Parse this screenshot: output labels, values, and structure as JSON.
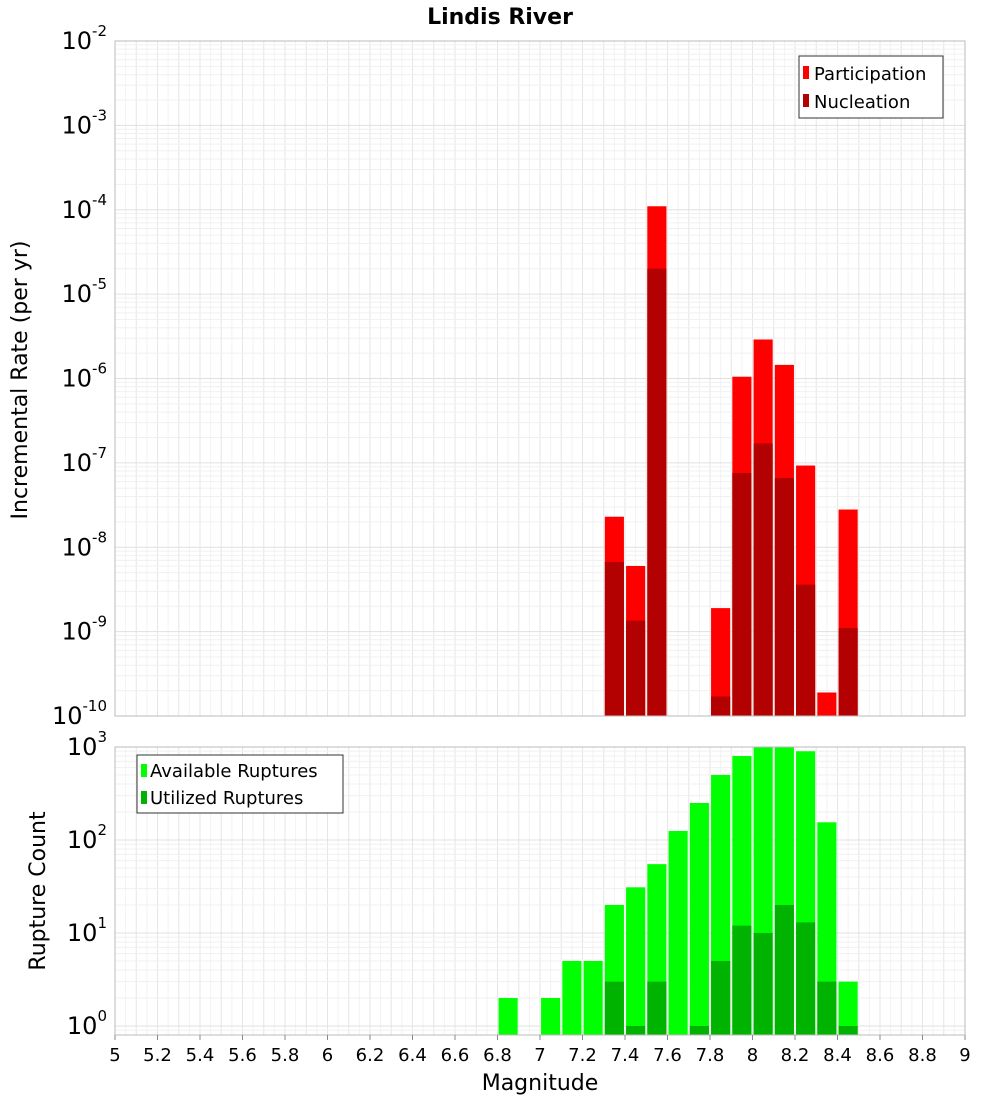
{
  "chart_data": [
    {
      "type": "bar",
      "title": "Lindis River",
      "xlabel": "",
      "ylabel": "Incremental Rate (per yr)",
      "xlim": [
        5,
        9
      ],
      "ylim": [
        1e-10,
        0.01
      ],
      "yscale": "log",
      "grid": true,
      "legend_position": "top-right",
      "yticks": [
        {
          "base": "10",
          "exp": "-10",
          "value": 1e-10
        },
        {
          "base": "10",
          "exp": "-9",
          "value": 1e-09
        },
        {
          "base": "10",
          "exp": "-8",
          "value": 1e-08
        },
        {
          "base": "10",
          "exp": "-7",
          "value": 1e-07
        },
        {
          "base": "10",
          "exp": "-6",
          "value": 1e-06
        },
        {
          "base": "10",
          "exp": "-5",
          "value": 1e-05
        },
        {
          "base": "10",
          "exp": "-4",
          "value": 0.0001
        },
        {
          "base": "10",
          "exp": "-3",
          "value": 0.001
        },
        {
          "base": "10",
          "exp": "-2",
          "value": 0.01
        }
      ],
      "series": [
        {
          "name": "Participation",
          "color": "#ff0000",
          "points": [
            {
              "x": 7.35,
              "y": 2.3e-08
            },
            {
              "x": 7.45,
              "y": 6e-09
            },
            {
              "x": 7.55,
              "y": 0.00011
            },
            {
              "x": 7.85,
              "y": 1.9e-09
            },
            {
              "x": 7.95,
              "y": 1.05e-06
            },
            {
              "x": 8.05,
              "y": 2.9e-06
            },
            {
              "x": 8.15,
              "y": 1.45e-06
            },
            {
              "x": 8.25,
              "y": 9.3e-08
            },
            {
              "x": 8.35,
              "y": 1.9e-10
            },
            {
              "x": 8.45,
              "y": 2.8e-08
            }
          ]
        },
        {
          "name": "Nucleation",
          "color": "#b30000",
          "points": [
            {
              "x": 7.35,
              "y": 6.7e-09
            },
            {
              "x": 7.45,
              "y": 1.35e-09
            },
            {
              "x": 7.55,
              "y": 2e-05
            },
            {
              "x": 7.85,
              "y": 1.7e-10
            },
            {
              "x": 7.95,
              "y": 7.6e-08
            },
            {
              "x": 8.05,
              "y": 1.7e-07
            },
            {
              "x": 8.15,
              "y": 6.6e-08
            },
            {
              "x": 8.25,
              "y": 3.6e-09
            },
            {
              "x": 8.45,
              "y": 1.1e-09
            }
          ]
        }
      ]
    },
    {
      "type": "bar",
      "title": "",
      "xlabel": "Magnitude",
      "ylabel": "Rupture Count",
      "xlim": [
        5,
        9
      ],
      "ylim": [
        0.8,
        1000
      ],
      "yscale": "log",
      "grid": true,
      "legend_position": "top-left",
      "xticks": [
        "5",
        "5.2",
        "5.4",
        "5.6",
        "5.8",
        "6",
        "6.2",
        "6.4",
        "6.6",
        "6.8",
        "7",
        "7.2",
        "7.4",
        "7.6",
        "7.8",
        "8",
        "8.2",
        "8.4",
        "8.6",
        "8.8",
        "9"
      ],
      "yticks": [
        {
          "base": "10",
          "exp": "0",
          "value": 1
        },
        {
          "base": "10",
          "exp": "1",
          "value": 10
        },
        {
          "base": "10",
          "exp": "2",
          "value": 100
        },
        {
          "base": "10",
          "exp": "3",
          "value": 1000
        }
      ],
      "series": [
        {
          "name": "Available Ruptures",
          "color": "#00ff00",
          "points": [
            {
              "x": 6.85,
              "y": 2
            },
            {
              "x": 7.05,
              "y": 2
            },
            {
              "x": 7.15,
              "y": 5
            },
            {
              "x": 7.25,
              "y": 5
            },
            {
              "x": 7.35,
              "y": 20
            },
            {
              "x": 7.45,
              "y": 31
            },
            {
              "x": 7.55,
              "y": 55
            },
            {
              "x": 7.65,
              "y": 125
            },
            {
              "x": 7.75,
              "y": 250
            },
            {
              "x": 7.85,
              "y": 500
            },
            {
              "x": 7.95,
              "y": 800
            },
            {
              "x": 8.05,
              "y": 1000
            },
            {
              "x": 8.15,
              "y": 1000
            },
            {
              "x": 8.25,
              "y": 900
            },
            {
              "x": 8.35,
              "y": 155
            },
            {
              "x": 8.45,
              "y": 3
            }
          ]
        },
        {
          "name": "Utilized Ruptures",
          "color": "#00b300",
          "points": [
            {
              "x": 7.35,
              "y": 3
            },
            {
              "x": 7.45,
              "y": 1
            },
            {
              "x": 7.55,
              "y": 3
            },
            {
              "x": 7.75,
              "y": 1
            },
            {
              "x": 7.85,
              "y": 5
            },
            {
              "x": 7.95,
              "y": 12
            },
            {
              "x": 8.05,
              "y": 10
            },
            {
              "x": 8.15,
              "y": 20
            },
            {
              "x": 8.25,
              "y": 13
            },
            {
              "x": 8.35,
              "y": 3
            },
            {
              "x": 8.45,
              "y": 1
            }
          ]
        }
      ]
    }
  ]
}
